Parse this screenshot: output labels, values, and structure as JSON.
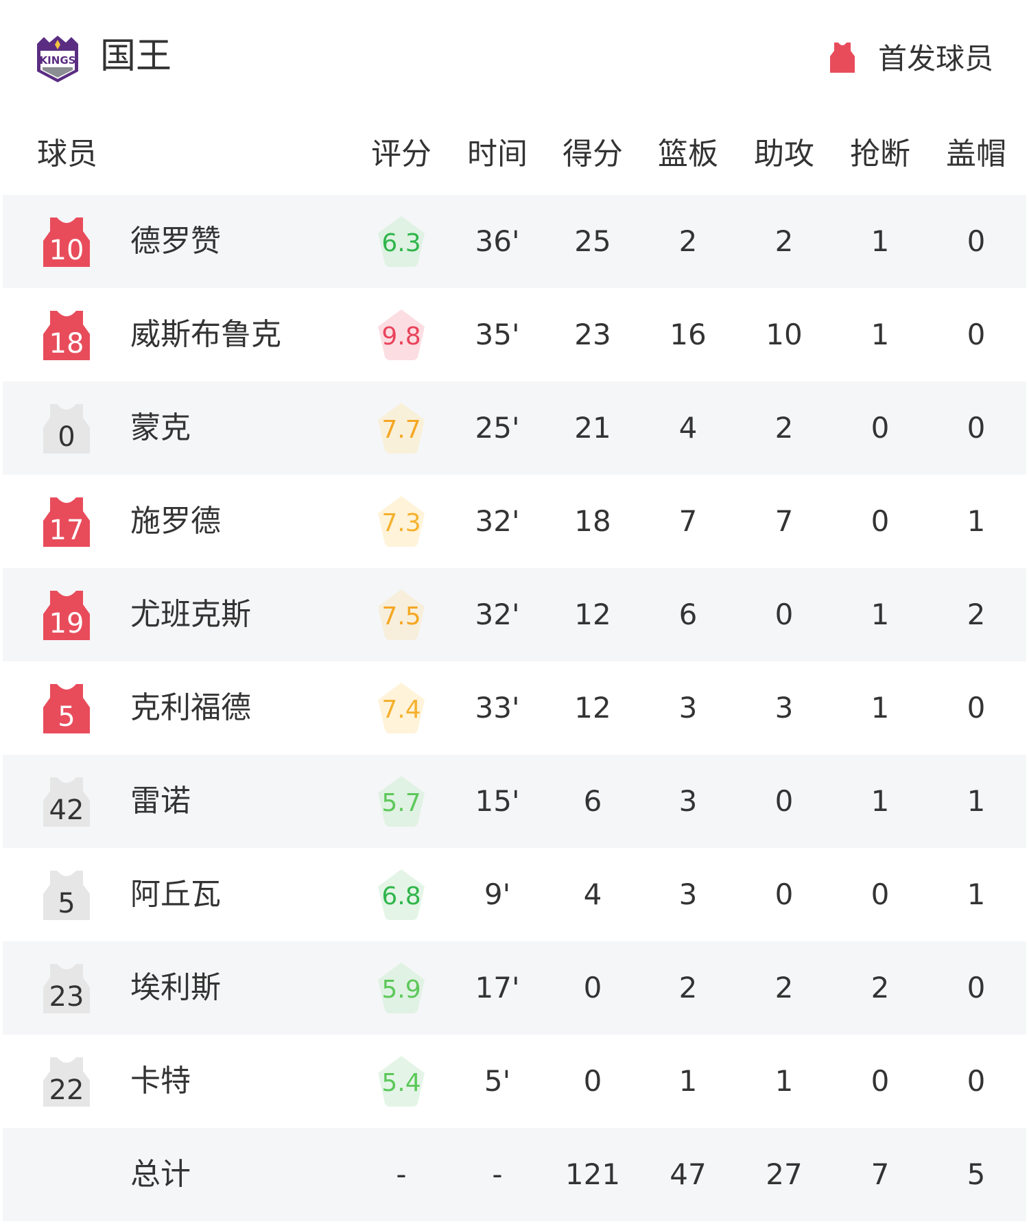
{
  "team": {
    "name": "国王",
    "logo_text": "KINGS"
  },
  "legend": {
    "label": "首发球员",
    "starter_color": "#e84c5b",
    "bench_color": "#e6e6e6"
  },
  "columns": [
    "球员",
    "评分",
    "时间",
    "得分",
    "篮板",
    "助攻",
    "抢断",
    "盖帽"
  ],
  "players": [
    {
      "number": "10",
      "name": "德罗赞",
      "starter": true,
      "rating": "6.3",
      "rating_color": "#2fb54a",
      "rating_bg": "#dff2e3",
      "time": "36'",
      "pts": "25",
      "reb": "2",
      "ast": "2",
      "stl": "1",
      "blk": "0"
    },
    {
      "number": "18",
      "name": "威斯布鲁克",
      "starter": true,
      "rating": "9.8",
      "rating_color": "#e8435a",
      "rating_bg": "#fcdde2",
      "time": "35'",
      "pts": "23",
      "reb": "16",
      "ast": "10",
      "stl": "1",
      "blk": "0"
    },
    {
      "number": "0",
      "name": "蒙克",
      "starter": false,
      "rating": "7.7",
      "rating_color": "#f5a623",
      "rating_bg": "#f9f0d9",
      "time": "25'",
      "pts": "21",
      "reb": "4",
      "ast": "2",
      "stl": "0",
      "blk": "0"
    },
    {
      "number": "17",
      "name": "施罗德",
      "starter": true,
      "rating": "7.3",
      "rating_color": "#f5b12e",
      "rating_bg": "#fff3d9",
      "time": "32'",
      "pts": "18",
      "reb": "7",
      "ast": "7",
      "stl": "0",
      "blk": "1"
    },
    {
      "number": "19",
      "name": "尤班克斯",
      "starter": true,
      "rating": "7.5",
      "rating_color": "#f5a623",
      "rating_bg": "#f7efdb",
      "time": "32'",
      "pts": "12",
      "reb": "6",
      "ast": "0",
      "stl": "1",
      "blk": "2"
    },
    {
      "number": "5",
      "name": "克利福德",
      "starter": true,
      "rating": "7.4",
      "rating_color": "#f5b12e",
      "rating_bg": "#fff3d9",
      "time": "33'",
      "pts": "12",
      "reb": "3",
      "ast": "3",
      "stl": "1",
      "blk": "0"
    },
    {
      "number": "42",
      "name": "雷诺",
      "starter": false,
      "rating": "5.7",
      "rating_color": "#5cc85a",
      "rating_bg": "#e0f2e3",
      "time": "15'",
      "pts": "6",
      "reb": "3",
      "ast": "0",
      "stl": "1",
      "blk": "1"
    },
    {
      "number": "5",
      "name": "阿丘瓦",
      "starter": false,
      "rating": "6.8",
      "rating_color": "#2fb54a",
      "rating_bg": "#e4f5e7",
      "time": "9'",
      "pts": "4",
      "reb": "3",
      "ast": "0",
      "stl": "0",
      "blk": "1"
    },
    {
      "number": "23",
      "name": "埃利斯",
      "starter": false,
      "rating": "5.9",
      "rating_color": "#5cc85a",
      "rating_bg": "#e0f2e3",
      "time": "17'",
      "pts": "0",
      "reb": "2",
      "ast": "2",
      "stl": "2",
      "blk": "0"
    },
    {
      "number": "22",
      "name": "卡特",
      "starter": false,
      "rating": "5.4",
      "rating_color": "#5cc85a",
      "rating_bg": "#e4f5e7",
      "time": "5'",
      "pts": "0",
      "reb": "1",
      "ast": "1",
      "stl": "0",
      "blk": "0"
    }
  ],
  "total": {
    "label": "总计",
    "rating": "-",
    "time": "-",
    "pts": "121",
    "reb": "47",
    "ast": "27",
    "stl": "7",
    "blk": "5"
  }
}
